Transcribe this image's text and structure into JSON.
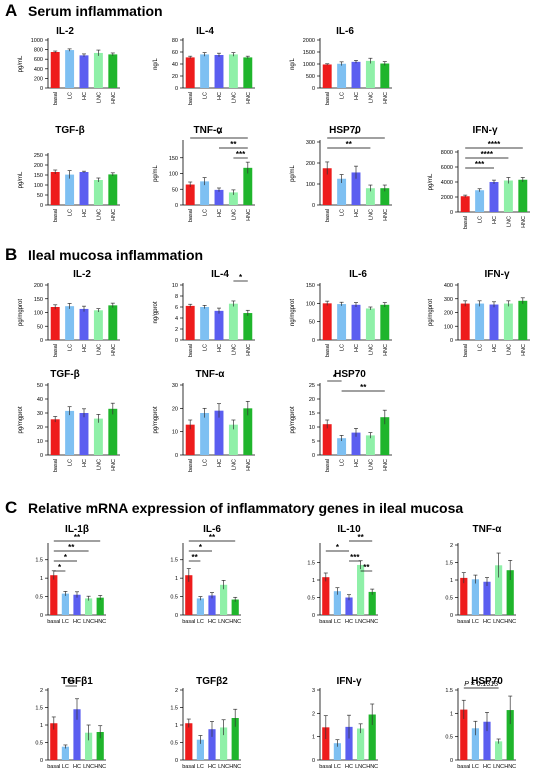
{
  "sections": [
    {
      "letter": "A",
      "title": "Serum inflammation"
    },
    {
      "letter": "B",
      "title": "Ileal mucosa inflammation"
    },
    {
      "letter": "C",
      "title": "Relative mRNA expression of inflammatory genes in ileal mucosa"
    }
  ],
  "colors": {
    "basal": "#ee1c1c",
    "LC": "#7ec0f2",
    "HC": "#5b5ef0",
    "LNC": "#8ff0a8",
    "HNC": "#1fb52c"
  },
  "chart_data": [
    {
      "id": "A-IL2",
      "type": "bar",
      "title": "IL-2",
      "ylabel": "pg/mL",
      "categories": [
        "basal",
        "LC",
        "HC",
        "LNC",
        "HNC"
      ],
      "values": [
        750,
        790,
        680,
        730,
        700
      ],
      "errors": [
        20,
        25,
        30,
        60,
        30
      ],
      "yticks": [
        0,
        200,
        400,
        600,
        800,
        1000
      ],
      "ylim": [
        0,
        1000
      ],
      "sig": []
    },
    {
      "id": "A-IL4",
      "type": "bar",
      "title": "IL-4",
      "ylabel": "ng/L",
      "categories": [
        "basal",
        "LC",
        "HC",
        "LNC",
        "HNC"
      ],
      "values": [
        51,
        56,
        55,
        56,
        51
      ],
      "errors": [
        2,
        3,
        3,
        3,
        2
      ],
      "yticks": [
        0,
        20,
        40,
        60,
        80
      ],
      "ylim": [
        0,
        80
      ],
      "sig": []
    },
    {
      "id": "A-IL6",
      "type": "bar",
      "title": "IL-6",
      "ylabel": "ng/L",
      "categories": [
        "basal",
        "LC",
        "HC",
        "LNC",
        "HNC"
      ],
      "values": [
        980,
        1010,
        1090,
        1130,
        1020
      ],
      "errors": [
        30,
        80,
        60,
        110,
        80
      ],
      "yticks": [
        0,
        500,
        1000,
        1500,
        2000
      ],
      "ylim": [
        0,
        2000
      ],
      "sig": []
    },
    {
      "id": "A-TGFb",
      "type": "bar",
      "title": "TGF-β",
      "ylabel": "pg/mL",
      "categories": [
        "basal",
        "LC",
        "HC",
        "LNC",
        "HNC"
      ],
      "values": [
        165,
        152,
        165,
        125,
        153
      ],
      "errors": [
        10,
        20,
        4,
        10,
        8
      ],
      "yticks": [
        0,
        50,
        100,
        150,
        200,
        250
      ],
      "ylim": [
        0,
        250
      ],
      "sig": []
    },
    {
      "id": "A-TNFa",
      "type": "bar",
      "title": "TNF-α",
      "ylabel": "pg/mL",
      "categories": [
        "basal",
        "LC",
        "HC",
        "LNC",
        "HNC"
      ],
      "values": [
        65,
        75,
        48,
        40,
        118
      ],
      "errors": [
        8,
        12,
        6,
        8,
        18
      ],
      "yticks": [
        0,
        50,
        100,
        150
      ],
      "ylim": [
        0,
        200
      ],
      "sig": [
        {
          "a": 0,
          "b": 4,
          "label": "*"
        },
        {
          "a": 2,
          "b": 4,
          "label": "**"
        },
        {
          "a": 3,
          "b": 4,
          "label": "***"
        }
      ]
    },
    {
      "id": "A-HSP70",
      "type": "bar",
      "title": "HSP70",
      "ylabel": "pg/mL",
      "categories": [
        "basal",
        "LC",
        "HC",
        "LNC",
        "HNC"
      ],
      "values": [
        175,
        125,
        155,
        80,
        80
      ],
      "errors": [
        30,
        20,
        30,
        15,
        15
      ],
      "yticks": [
        0,
        100,
        200,
        300
      ],
      "ylim": [
        0,
        300
      ],
      "sig": [
        {
          "a": 0,
          "b": 4,
          "label": "*"
        },
        {
          "a": 0,
          "b": 3,
          "label": "**"
        }
      ]
    },
    {
      "id": "A-IFNg",
      "type": "bar",
      "title": "IFN-γ",
      "ylabel": "pg/mL",
      "categories": [
        "basal",
        "LC",
        "HC",
        "LNC",
        "HNC"
      ],
      "values": [
        2100,
        2900,
        4000,
        4200,
        4300
      ],
      "errors": [
        150,
        200,
        250,
        400,
        300
      ],
      "yticks": [
        0,
        2000,
        4000,
        6000,
        8000
      ],
      "ylim": [
        0,
        8000
      ],
      "sig": [
        {
          "a": 0,
          "b": 4,
          "label": "****"
        },
        {
          "a": 0,
          "b": 3,
          "label": "****"
        },
        {
          "a": 0,
          "b": 2,
          "label": "***"
        }
      ]
    },
    {
      "id": "B-IL2",
      "type": "bar",
      "title": "IL-2",
      "ylabel": "pg/mgprot",
      "categories": [
        "basal",
        "LC",
        "HC",
        "LNC",
        "HNC"
      ],
      "values": [
        120,
        123,
        113,
        108,
        126
      ],
      "errors": [
        8,
        10,
        10,
        6,
        8
      ],
      "yticks": [
        0,
        50,
        100,
        150,
        200
      ],
      "ylim": [
        0,
        200
      ],
      "sig": []
    },
    {
      "id": "B-IL4",
      "type": "bar",
      "title": "IL-4",
      "ylabel": "ng/gprot",
      "categories": [
        "basal",
        "LC",
        "HC",
        "LNC",
        "HNC"
      ],
      "values": [
        6.2,
        6.0,
        5.3,
        6.6,
        4.9
      ],
      "errors": [
        0.3,
        0.3,
        0.5,
        0.5,
        0.5
      ],
      "yticks": [
        0,
        2,
        4,
        6,
        8,
        10
      ],
      "ylim": [
        0,
        10
      ],
      "sig": [
        {
          "a": 3,
          "b": 4,
          "label": "*"
        }
      ]
    },
    {
      "id": "B-IL6",
      "type": "bar",
      "title": "IL-6",
      "ylabel": "ng/mgprot",
      "categories": [
        "basal",
        "LC",
        "HC",
        "LNC",
        "HNC"
      ],
      "values": [
        100,
        98,
        96,
        86,
        96
      ],
      "errors": [
        6,
        5,
        6,
        4,
        6
      ],
      "yticks": [
        0,
        50,
        100,
        150
      ],
      "ylim": [
        0,
        150
      ],
      "sig": []
    },
    {
      "id": "B-IFNg",
      "type": "bar",
      "title": "IFN-γ",
      "ylabel": "pg/mgprot",
      "categories": [
        "basal",
        "LC",
        "HC",
        "LNC",
        "HNC"
      ],
      "values": [
        265,
        265,
        258,
        265,
        285
      ],
      "errors": [
        20,
        20,
        20,
        20,
        22
      ],
      "yticks": [
        0,
        100,
        200,
        300,
        400
      ],
      "ylim": [
        0,
        400
      ],
      "sig": []
    },
    {
      "id": "B-TGFb",
      "type": "bar",
      "title": "TGF-β",
      "ylabel": "pg/mgprot",
      "categories": [
        "basal",
        "LC",
        "HC",
        "LNC",
        "HNC"
      ],
      "values": [
        25.5,
        31.5,
        30,
        26,
        33
      ],
      "errors": [
        2,
        3,
        3,
        3,
        4
      ],
      "yticks": [
        0,
        10,
        20,
        30,
        40,
        50
      ],
      "ylim": [
        0,
        50
      ],
      "sig": []
    },
    {
      "id": "B-TNFa",
      "type": "bar",
      "title": "TNF-α",
      "ylabel": "pg/mgprot",
      "categories": [
        "basal",
        "LC",
        "HC",
        "LNC",
        "HNC"
      ],
      "values": [
        13,
        18,
        19,
        13,
        20
      ],
      "errors": [
        2,
        2,
        3,
        2,
        3
      ],
      "yticks": [
        0,
        10,
        20,
        30
      ],
      "ylim": [
        0,
        30
      ],
      "sig": []
    },
    {
      "id": "B-HSP70",
      "type": "bar",
      "title": "HSP70",
      "ylabel": "pg/mgprot",
      "categories": [
        "basal",
        "LC",
        "HC",
        "LNC",
        "HNC"
      ],
      "values": [
        11,
        6,
        8,
        7,
        13.5
      ],
      "errors": [
        1.5,
        1,
        1.5,
        1,
        2.5
      ],
      "yticks": [
        0,
        5,
        10,
        15,
        20,
        25
      ],
      "ylim": [
        0,
        25
      ],
      "sig": [
        {
          "a": 0,
          "b": 1,
          "label": "*"
        },
        {
          "a": 1,
          "b": 4,
          "label": "**"
        }
      ]
    },
    {
      "id": "C-IL1b",
      "type": "bar",
      "title": "IL-1β",
      "ylabel": "",
      "categories": [
        "basal",
        "LC",
        "HC",
        "LNC",
        "HNC"
      ],
      "values": [
        1.08,
        0.58,
        0.55,
        0.45,
        0.47
      ],
      "errors": [
        0.12,
        0.06,
        0.08,
        0.06,
        0.06
      ],
      "yticks": [
        0,
        0.5,
        1.0,
        1.5
      ],
      "ylim": [
        0,
        1.9
      ],
      "sig": [
        {
          "a": 0,
          "b": 4,
          "label": "**"
        },
        {
          "a": 0,
          "b": 3,
          "label": "**"
        },
        {
          "a": 0,
          "b": 2,
          "label": "*"
        },
        {
          "a": 0,
          "b": 1,
          "label": "*"
        }
      ]
    },
    {
      "id": "C-IL6",
      "type": "bar",
      "title": "IL-6",
      "ylabel": "",
      "categories": [
        "basal",
        "LC",
        "HC",
        "LNC",
        "HNC"
      ],
      "values": [
        1.08,
        0.45,
        0.53,
        0.82,
        0.42
      ],
      "errors": [
        0.18,
        0.05,
        0.08,
        0.12,
        0.06
      ],
      "yticks": [
        0,
        0.5,
        1.0,
        1.5
      ],
      "ylim": [
        0,
        1.9
      ],
      "sig": [
        {
          "a": 0,
          "b": 4,
          "label": "**"
        },
        {
          "a": 0,
          "b": 2,
          "label": "*"
        },
        {
          "a": 0,
          "b": 1,
          "label": "**"
        }
      ]
    },
    {
      "id": "C-IL10",
      "type": "bar",
      "title": "IL-10",
      "ylabel": "",
      "categories": [
        "basal",
        "LC",
        "HC",
        "LNC",
        "HNC"
      ],
      "values": [
        1.08,
        0.68,
        0.5,
        1.43,
        0.66
      ],
      "errors": [
        0.12,
        0.1,
        0.08,
        0.12,
        0.08
      ],
      "yticks": [
        0,
        0.5,
        1.0,
        1.5
      ],
      "ylim": [
        0,
        2.0
      ],
      "sig": [
        {
          "a": 2,
          "b": 4,
          "label": "**"
        },
        {
          "a": 0,
          "b": 2,
          "label": "*"
        },
        {
          "a": 2,
          "b": 3,
          "label": "***"
        },
        {
          "a": 3,
          "b": 4,
          "label": "**"
        }
      ]
    },
    {
      "id": "C-TNFa",
      "type": "bar",
      "title": "TNF-α",
      "ylabel": "",
      "categories": [
        "basal",
        "LC",
        "HC",
        "LNC",
        "HNC"
      ],
      "values": [
        1.06,
        1.02,
        0.95,
        1.42,
        1.28
      ],
      "errors": [
        0.15,
        0.12,
        0.12,
        0.35,
        0.28
      ],
      "yticks": [
        0,
        0.5,
        1.0,
        1.5,
        2.0
      ],
      "ylim": [
        0,
        2.0
      ],
      "sig": []
    },
    {
      "id": "C-TGFb1",
      "type": "bar",
      "title": "TGFβ1",
      "ylabel": "",
      "categories": [
        "basal",
        "LC",
        "HC",
        "LNC",
        "HNC"
      ],
      "values": [
        1.05,
        0.38,
        1.45,
        0.78,
        0.8
      ],
      "errors": [
        0.18,
        0.05,
        0.3,
        0.22,
        0.18
      ],
      "yticks": [
        0,
        0.5,
        1.0,
        1.5,
        2.0
      ],
      "ylim": [
        0,
        2.0
      ],
      "sig": [
        {
          "a": 1,
          "b": 2,
          "label": "**"
        }
      ]
    },
    {
      "id": "C-TGFb2",
      "type": "bar",
      "title": "TGFβ2",
      "ylabel": "",
      "categories": [
        "basal",
        "LC",
        "HC",
        "LNC",
        "HNC"
      ],
      "values": [
        1.05,
        0.58,
        0.88,
        0.93,
        1.2
      ],
      "errors": [
        0.12,
        0.12,
        0.22,
        0.22,
        0.25
      ],
      "yticks": [
        0,
        0.5,
        1.0,
        1.5,
        2.0
      ],
      "ylim": [
        0,
        2.0
      ],
      "sig": []
    },
    {
      "id": "C-IFNg",
      "type": "bar",
      "title": "IFN-γ",
      "ylabel": "",
      "categories": [
        "basal",
        "LC",
        "HC",
        "LNC",
        "HNC"
      ],
      "values": [
        1.4,
        0.72,
        1.42,
        1.35,
        1.95
      ],
      "errors": [
        0.5,
        0.15,
        0.5,
        0.2,
        0.45
      ],
      "yticks": [
        0,
        1,
        2,
        3
      ],
      "ylim": [
        0,
        3
      ],
      "sig": []
    },
    {
      "id": "C-HSP70",
      "type": "bar",
      "title": "HSP70",
      "ylabel": "",
      "categories": [
        "basal",
        "LC",
        "HC",
        "LNC",
        "HNC"
      ],
      "values": [
        1.08,
        0.68,
        0.82,
        0.4,
        1.07
      ],
      "errors": [
        0.2,
        0.15,
        0.2,
        0.05,
        0.3
      ],
      "yticks": [
        0,
        0.5,
        1.0,
        1.5
      ],
      "ylim": [
        0,
        1.5
      ],
      "sig": [],
      "note": "P = 0.1313",
      "note_span": [
        0,
        3
      ]
    }
  ]
}
